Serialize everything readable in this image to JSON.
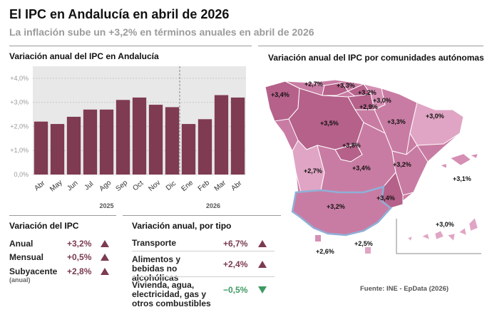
{
  "header": {
    "title": "El IPC en Andalucía en abril de 2026",
    "subtitle": "La inflación sube un +3,2% en términos anuales en abril de 2026"
  },
  "chart_data": {
    "type": "bar",
    "title": "Variación anual del IPC en Andalucía",
    "categories": [
      "Abr",
      "May",
      "Jun",
      "Jul",
      "Ago",
      "Sep",
      "Oct",
      "Nov",
      "Dic",
      "Ene",
      "Feb",
      "Mar",
      "Abr"
    ],
    "values": [
      2.2,
      2.1,
      2.4,
      2.7,
      2.7,
      3.1,
      3.2,
      2.9,
      2.8,
      2.1,
      2.3,
      3.3,
      3.2
    ],
    "yticks": [
      "+4,0%",
      "+3,0%",
      "+2,0%",
      "+1,0%",
      "0,0%"
    ],
    "ylim": [
      0,
      4.5
    ],
    "year_groups": [
      {
        "label": "2025",
        "start_index": 0,
        "end_index": 8
      },
      {
        "label": "2026",
        "start_index": 9,
        "end_index": 12
      }
    ],
    "bar_color": "#7f3b52",
    "background": "#e8e8e8",
    "grid": true
  },
  "ipc_summary": {
    "title": "Variación del IPC",
    "rows": [
      {
        "label": "Anual",
        "sub": "",
        "value": "+3,2%",
        "trend": "up"
      },
      {
        "label": "Mensual",
        "sub": "",
        "value": "+0,5%",
        "trend": "up"
      },
      {
        "label": "Subyacente",
        "sub": "(anual)",
        "value": "+2,8%",
        "trend": "up"
      }
    ]
  },
  "by_type": {
    "title": "Variación anual, por tipo",
    "rows": [
      {
        "label": "Transporte",
        "value": "+6,7%",
        "trend": "up"
      },
      {
        "label": "Alimentos y bebidas no alcohólicas",
        "value": "+2,4%",
        "trend": "up"
      },
      {
        "label": "Vivienda, agua, electricidad, gas y otros combustibles",
        "value": "−0,5%",
        "trend": "down"
      }
    ]
  },
  "map": {
    "title": "Variación anual del IPC por comunidades autónomas",
    "values": [
      {
        "region": "galicia",
        "value": "+3,4%"
      },
      {
        "region": "asturias",
        "value": "+2,7%"
      },
      {
        "region": "cantabria",
        "value": "+3,3%"
      },
      {
        "region": "pais-vasco",
        "value": "+3,2%"
      },
      {
        "region": "navarra",
        "value": "+3,0%"
      },
      {
        "region": "la-rioja",
        "value": "+2,9%"
      },
      {
        "region": "castilla-y-leon",
        "value": "+3,5%"
      },
      {
        "region": "aragon",
        "value": "+3,3%"
      },
      {
        "region": "cataluna",
        "value": "+3,0%"
      },
      {
        "region": "madrid",
        "value": "+3,8%"
      },
      {
        "region": "extremadura",
        "value": "+2,7%"
      },
      {
        "region": "castilla-la-mancha",
        "value": "+3,4%"
      },
      {
        "region": "comunitat-valenciana",
        "value": "+3,2%"
      },
      {
        "region": "baleares",
        "value": "+3,1%"
      },
      {
        "region": "murcia",
        "value": "+3,4%"
      },
      {
        "region": "andalucia",
        "value": "+3,2%"
      },
      {
        "region": "canarias",
        "value": "+3,0%"
      },
      {
        "region": "ceuta",
        "value": "+2,6%"
      },
      {
        "region": "melilla",
        "value": "+2,5%"
      }
    ]
  },
  "source": "Fuente: INE - EpData (2026)"
}
